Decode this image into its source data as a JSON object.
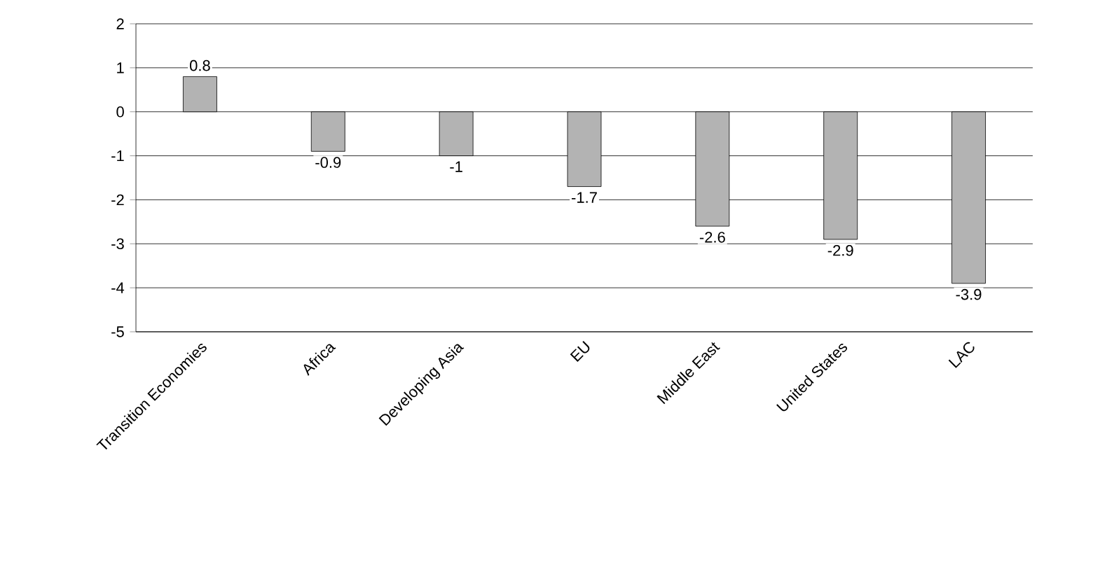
{
  "chart_data": {
    "type": "bar",
    "categories": [
      "Transition Economies",
      "Africa",
      "Developing Asia",
      "EU",
      "Middle East",
      "United States",
      "LAC"
    ],
    "values": [
      0.8,
      -0.9,
      -1,
      -1.7,
      -2.6,
      -2.9,
      -3.9
    ],
    "color": "#b3b3b3",
    "ylim": [
      -5,
      2
    ],
    "yticks": [
      -5,
      -4,
      -3,
      -2,
      -1,
      0,
      1,
      2
    ],
    "grid": "y",
    "data_labels": true
  }
}
